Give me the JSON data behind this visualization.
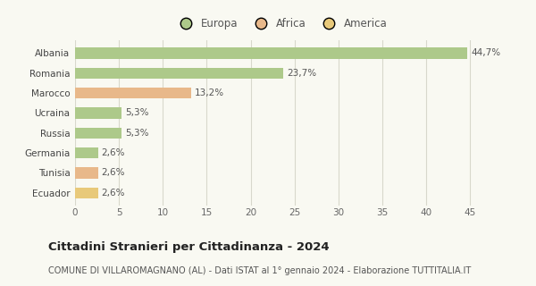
{
  "categories": [
    "Albania",
    "Romania",
    "Marocco",
    "Ucraina",
    "Russia",
    "Germania",
    "Tunisia",
    "Ecuador"
  ],
  "values": [
    44.7,
    23.7,
    13.2,
    5.3,
    5.3,
    2.6,
    2.6,
    2.6
  ],
  "labels": [
    "44,7%",
    "23,7%",
    "13,2%",
    "5,3%",
    "5,3%",
    "2,6%",
    "2,6%",
    "2,6%"
  ],
  "colors": [
    "#adc98a",
    "#adc98a",
    "#e8b88a",
    "#adc98a",
    "#adc98a",
    "#adc98a",
    "#e8b88a",
    "#e8c97a"
  ],
  "legend": [
    {
      "label": "Europa",
      "color": "#adc98a"
    },
    {
      "label": "Africa",
      "color": "#e8b88a"
    },
    {
      "label": "America",
      "color": "#e8c97a"
    }
  ],
  "xlim": [
    0,
    47
  ],
  "xticks": [
    0,
    5,
    10,
    15,
    20,
    25,
    30,
    35,
    40,
    45
  ],
  "title": "Cittadini Stranieri per Cittadinanza - 2024",
  "subtitle": "COMUNE DI VILLAROMAGNANO (AL) - Dati ISTAT al 1° gennaio 2024 - Elaborazione TUTTITALIA.IT",
  "background_color": "#f9f9f2",
  "grid_color": "#d8d8cc",
  "bar_height": 0.55,
  "title_fontsize": 9.5,
  "subtitle_fontsize": 7.0,
  "label_fontsize": 7.5,
  "tick_fontsize": 7.5,
  "legend_fontsize": 8.5
}
